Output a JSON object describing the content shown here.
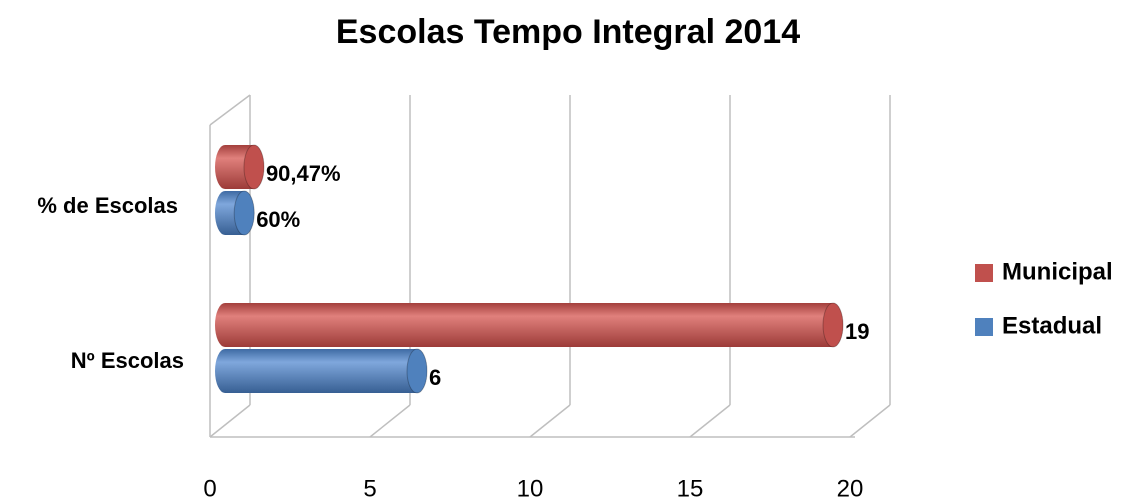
{
  "chart_data": {
    "type": "bar",
    "orientation": "horizontal",
    "title": "Escolas Tempo Integral 2014",
    "categories": [
      "% de Escolas",
      "Nº Escolas"
    ],
    "series": [
      {
        "name": "Municipal",
        "color": "#c0504d",
        "values": [
          0.9047,
          19
        ],
        "value_labels": [
          "90,47%",
          "19"
        ]
      },
      {
        "name": "Estadual",
        "color": "#4f81bd",
        "values": [
          0.6,
          6
        ],
        "value_labels": [
          "60%",
          "6"
        ]
      }
    ],
    "xlim": [
      0,
      20
    ],
    "xticks": [
      0,
      5,
      10,
      15,
      20
    ],
    "grid": true,
    "legend": "right"
  }
}
